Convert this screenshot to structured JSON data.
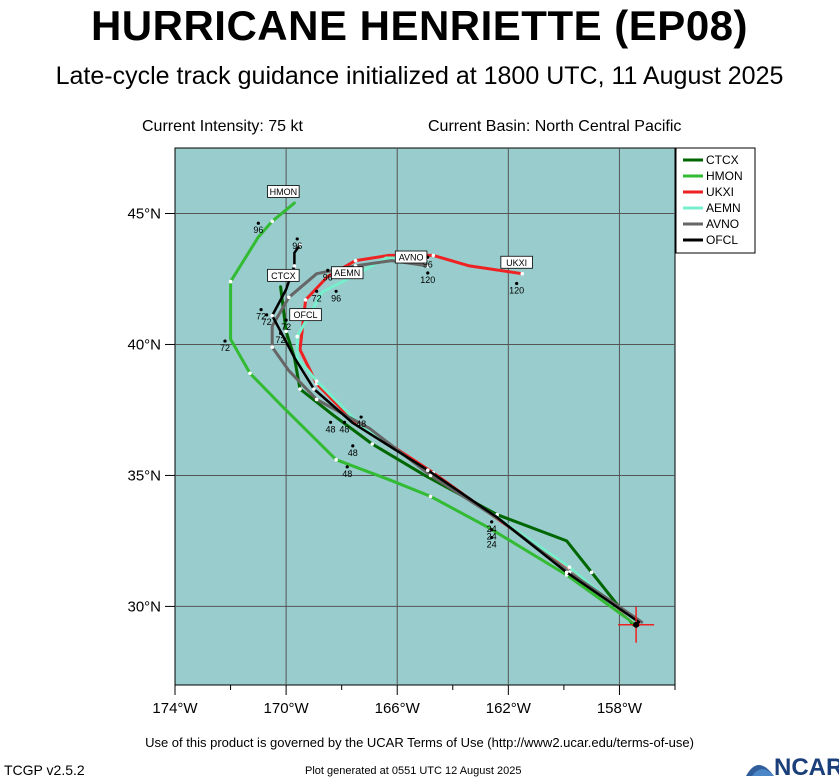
{
  "header": {
    "title": "HURRICANE HENRIETTE (EP08)",
    "subtitle": "Late-cycle track guidance initialized at 1800 UTC, 11 August 2025",
    "current_intensity": "Current Intensity: 75 kt",
    "current_basin": "Current Basin: North Central Pacific"
  },
  "footer": {
    "terms": "Use of this product is governed by the UCAR Terms of Use (http://www2.ucar.edu/terms-of-use)",
    "version": "TCGP v2.5.2",
    "generated": "Plot generated at 0551 UTC   12 August 2025",
    "logo_text": "NCAR"
  },
  "colors": {
    "ocean": "#99cccc",
    "grid": "#555555",
    "CTCX": "#006600",
    "HMON": "#33bb33",
    "UKXI": "#ee2222",
    "AEMN": "#77eecc",
    "AVNO": "#666666",
    "OFCL": "#000000",
    "storm_marker": "#ee2222"
  },
  "map": {
    "lon_range": [
      -174,
      -156
    ],
    "lat_range": [
      27,
      47.5
    ],
    "lon_ticks": [
      -174,
      -170,
      -166,
      -162,
      -158
    ],
    "lon_tick_labels": [
      "174°W",
      "170°W",
      "166°W",
      "162°W",
      "158°W"
    ],
    "lat_ticks": [
      30,
      35,
      40,
      45
    ],
    "lat_tick_labels": [
      "30°N",
      "35°N",
      "40°N",
      "45°N"
    ],
    "storm_position": {
      "lon": -157.4,
      "lat": 29.3
    }
  },
  "tracks": [
    {
      "name": "CTCX",
      "points": [
        [
          -157.5,
          29.3
        ],
        [
          -159.0,
          31.3
        ],
        [
          -159.9,
          32.5
        ],
        [
          -162.4,
          33.5
        ],
        [
          -165.0,
          35.0
        ],
        [
          -166.9,
          36.2
        ],
        [
          -168.3,
          37.3
        ],
        [
          -169.5,
          38.3
        ],
        [
          -169.7,
          39.5
        ],
        [
          -170.0,
          40.5
        ],
        [
          -170.2,
          42.2
        ]
      ]
    },
    {
      "name": "HMON",
      "points": [
        [
          -157.4,
          29.3
        ],
        [
          -159.9,
          31.2
        ],
        [
          -162.7,
          33.0
        ],
        [
          -164.8,
          34.2
        ],
        [
          -166.2,
          34.8
        ],
        [
          -168.2,
          35.6
        ],
        [
          -170.2,
          37.7
        ],
        [
          -171.3,
          38.9
        ],
        [
          -172.0,
          40.2
        ],
        [
          -172.0,
          42.4
        ],
        [
          -171.0,
          44.1
        ],
        [
          -170.5,
          44.7
        ],
        [
          -169.7,
          45.4
        ]
      ]
    },
    {
      "name": "UKXI",
      "points": [
        [
          -157.3,
          29.3
        ],
        [
          -159.7,
          31.4
        ],
        [
          -162.2,
          33.2
        ],
        [
          -164.7,
          35.1
        ],
        [
          -167.6,
          37.1
        ],
        [
          -168.9,
          38.5
        ],
        [
          -169.5,
          39.8
        ],
        [
          -169.3,
          41.7
        ],
        [
          -168.5,
          42.6
        ],
        [
          -167.5,
          43.2
        ],
        [
          -166.3,
          43.4
        ],
        [
          -164.7,
          43.4
        ],
        [
          -163.4,
          43.0
        ],
        [
          -161.5,
          42.7
        ]
      ]
    },
    {
      "name": "AEMN",
      "points": [
        [
          -157.4,
          29.4
        ],
        [
          -159.8,
          31.5
        ],
        [
          -162.4,
          33.4
        ],
        [
          -165.0,
          35.2
        ],
        [
          -167.4,
          37.0
        ],
        [
          -168.9,
          38.6
        ],
        [
          -169.6,
          39.5
        ],
        [
          -169.6,
          40.3
        ],
        [
          -168.7,
          42.0
        ],
        [
          -167.6,
          42.6
        ],
        [
          -166.4,
          43.3
        ],
        [
          -164.9,
          43.3
        ]
      ]
    },
    {
      "name": "AVNO",
      "points": [
        [
          -157.2,
          29.4
        ],
        [
          -159.8,
          31.3
        ],
        [
          -162.3,
          33.3
        ],
        [
          -164.8,
          35.0
        ],
        [
          -167.0,
          36.8
        ],
        [
          -168.9,
          37.9
        ],
        [
          -169.9,
          39.0
        ],
        [
          -170.5,
          39.9
        ],
        [
          -170.5,
          40.7
        ],
        [
          -169.9,
          41.8
        ],
        [
          -168.9,
          42.7
        ],
        [
          -167.5,
          43.0
        ],
        [
          -166.2,
          43.2
        ],
        [
          -164.9,
          43.0
        ]
      ]
    },
    {
      "name": "OFCL",
      "points": [
        [
          -157.3,
          29.4
        ],
        [
          -159.9,
          31.3
        ],
        [
          -162.4,
          33.4
        ],
        [
          -164.9,
          35.2
        ],
        [
          -167.6,
          37.0
        ],
        [
          -169.0,
          38.3
        ],
        [
          -169.7,
          39.5
        ],
        [
          -170.5,
          41.1
        ],
        [
          -170.0,
          42.1
        ],
        [
          -169.7,
          43.0
        ],
        [
          -169.7,
          43.5
        ],
        [
          -169.5,
          43.8
        ]
      ]
    }
  ],
  "legend": [
    "CTCX",
    "HMON",
    "UKXI",
    "AEMN",
    "AVNO",
    "OFCL"
  ],
  "model_labels": [
    {
      "text": "HMON",
      "lon": -170.1,
      "lat": 45.8
    },
    {
      "text": "OFCL",
      "lon": -169.3,
      "lat": 41.1,
      "ref_lat": 44.1
    },
    {
      "text": "CTCX",
      "lon": -170.1,
      "lat": 42.6
    },
    {
      "text": "AEMN",
      "lon": -167.8,
      "lat": 42.7
    },
    {
      "text": "AVNO",
      "lon": -165.5,
      "lat": 43.3
    },
    {
      "text": "UKXI",
      "lon": -161.7,
      "lat": 43.1
    }
  ],
  "lead_labels": [
    {
      "text": "96",
      "lon": -171.0,
      "lat": 44.4
    },
    {
      "text": "96",
      "lon": -169.6,
      "lat": 43.8
    },
    {
      "text": "96",
      "lon": -168.5,
      "lat": 42.6
    },
    {
      "text": "96",
      "lon": -168.2,
      "lat": 41.8
    },
    {
      "text": "72",
      "lon": -168.9,
      "lat": 41.8
    },
    {
      "text": "96",
      "lon": -164.9,
      "lat": 43.1
    },
    {
      "text": "120",
      "lon": -164.9,
      "lat": 42.5
    },
    {
      "text": "120",
      "lon": -161.7,
      "lat": 42.1
    },
    {
      "text": "72",
      "lon": -170.9,
      "lat": 41.1
    },
    {
      "text": "72",
      "lon": -170.7,
      "lat": 40.9
    },
    {
      "text": "72",
      "lon": -170.0,
      "lat": 40.7
    },
    {
      "text": "72",
      "lon": -170.2,
      "lat": 40.2
    },
    {
      "text": "72",
      "lon": -172.2,
      "lat": 39.9
    },
    {
      "text": "48",
      "lon": -168.4,
      "lat": 36.8
    },
    {
      "text": "48",
      "lon": -167.9,
      "lat": 36.8
    },
    {
      "text": "48",
      "lon": -167.3,
      "lat": 37.0
    },
    {
      "text": "48",
      "lon": -167.6,
      "lat": 35.9
    },
    {
      "text": "48",
      "lon": -167.8,
      "lat": 35.1
    },
    {
      "text": "24",
      "lon": -162.6,
      "lat": 33.0
    },
    {
      "text": "24",
      "lon": -162.6,
      "lat": 32.7
    },
    {
      "text": "24",
      "lon": -162.6,
      "lat": 32.4
    }
  ]
}
